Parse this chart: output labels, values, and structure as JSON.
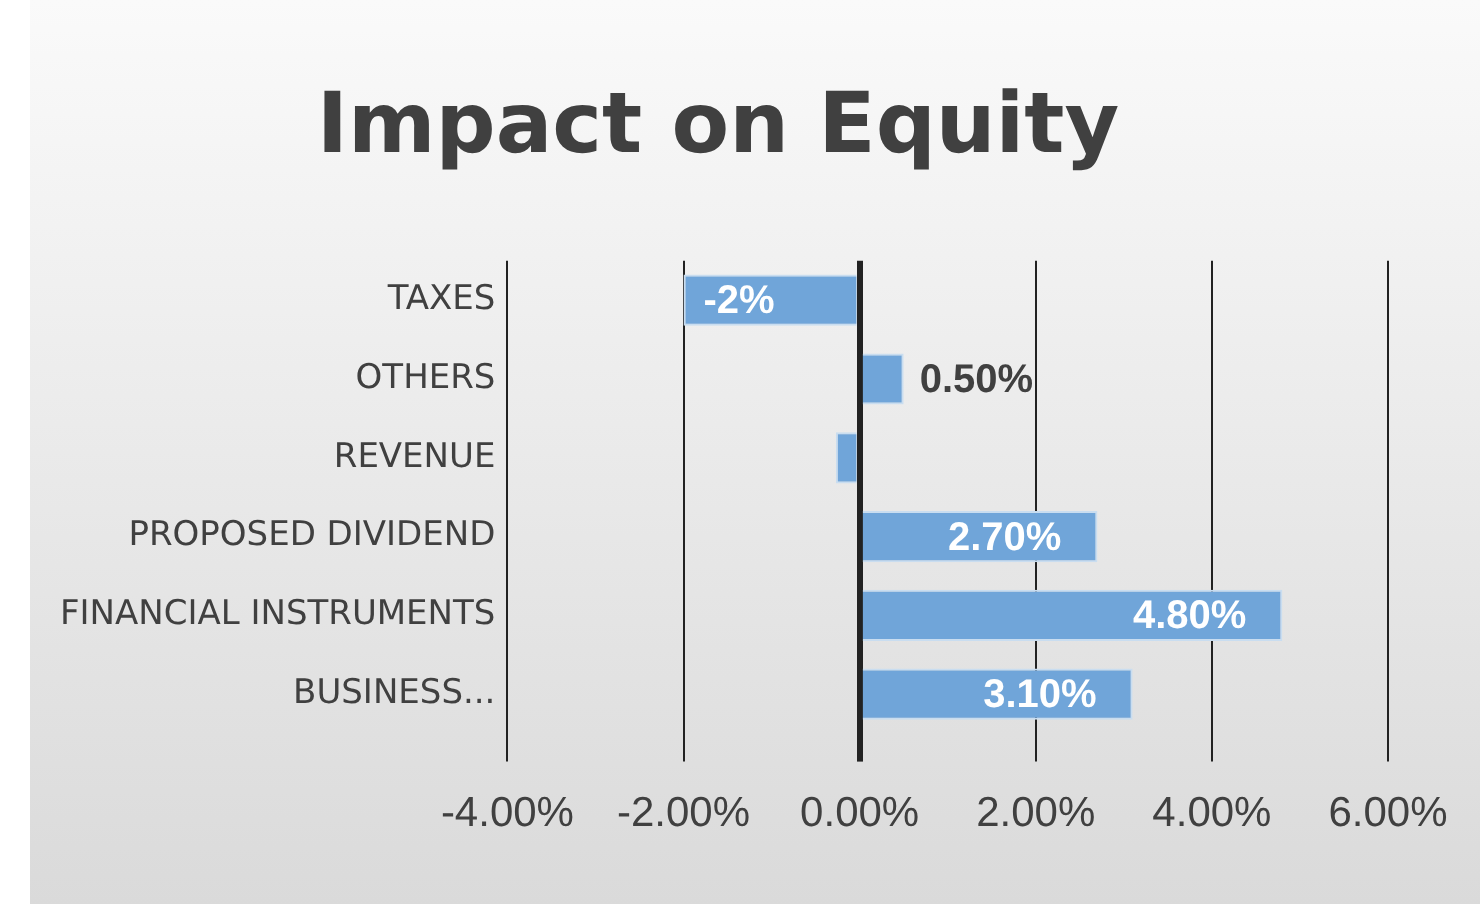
{
  "chart_data": {
    "type": "bar",
    "orientation": "horizontal",
    "title": "Impact on Equity",
    "categories": [
      "TAXES",
      "OTHERS",
      "REVENUE",
      "PROPOSED DIVIDEND",
      "FINANCIAL INSTRUMENTS",
      "BUSINESS..."
    ],
    "values": [
      -2,
      0.5,
      -0.27,
      2.7,
      4.8,
      3.1
    ],
    "value_labels": [
      "-2%",
      "0.50%",
      null,
      "2.70%",
      "4.80%",
      "3.10%"
    ],
    "color": "#70a5d9",
    "xlim": [
      -4,
      6
    ],
    "xticks": [
      {
        "value": -4,
        "label": "-4.00%"
      },
      {
        "value": -2,
        "label": "-2.00%"
      },
      {
        "value": 0,
        "label": "0.00%"
      },
      {
        "value": 2,
        "label": "2.00%"
      },
      {
        "value": 4,
        "label": "4.00%"
      },
      {
        "value": 6,
        "label": "6.00%"
      }
    ],
    "grid": "x",
    "legend": false
  }
}
